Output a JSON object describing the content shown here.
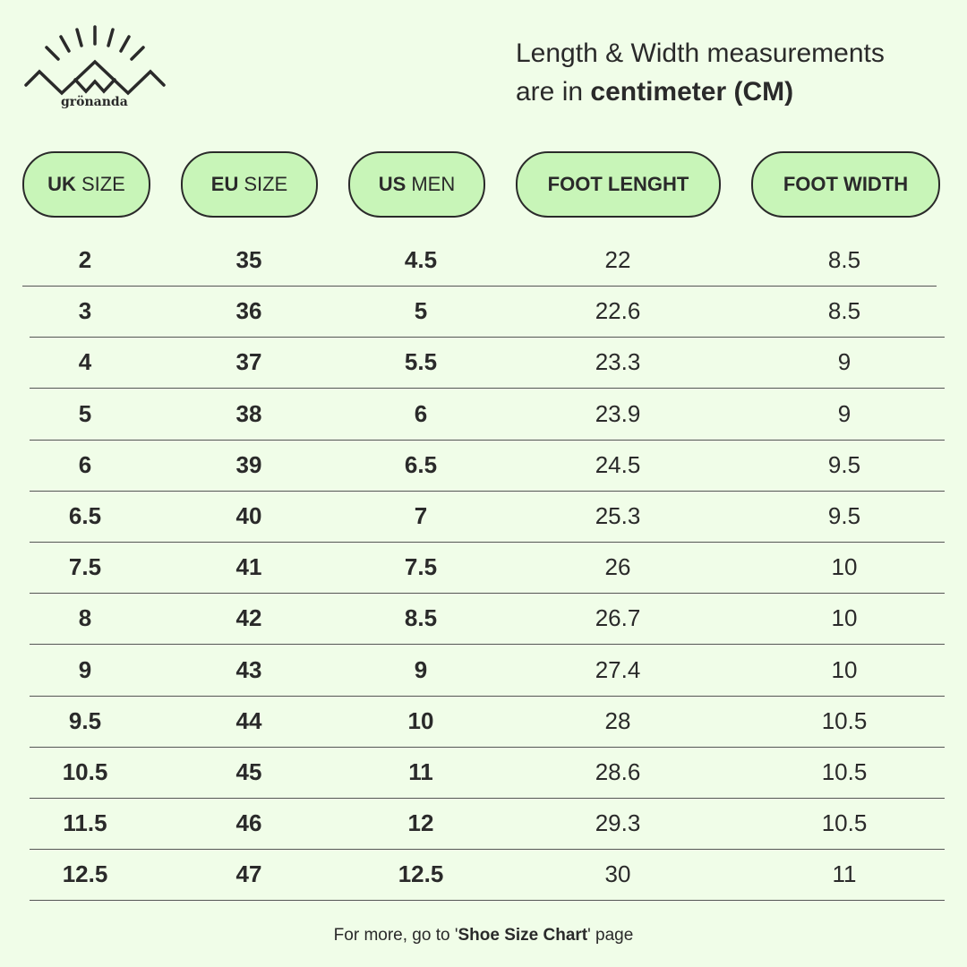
{
  "brand": {
    "name": "grönanda"
  },
  "note": {
    "line1": "Length & Width measurements",
    "line2_prefix": "are in ",
    "line2_bold": "centimeter (CM)"
  },
  "headers": [
    {
      "bold": "UK",
      "rest": "SIZE"
    },
    {
      "bold": "EU",
      "rest": "SIZE"
    },
    {
      "bold": "US",
      "rest": "MEN"
    },
    {
      "bold": "FOOT LENGHT",
      "rest": ""
    },
    {
      "bold": "FOOT WIDTH",
      "rest": ""
    }
  ],
  "rows": [
    [
      "2",
      "35",
      "4.5",
      "22",
      "8.5"
    ],
    [
      "3",
      "36",
      "5",
      "22.6",
      "8.5"
    ],
    [
      "4",
      "37",
      "5.5",
      "23.3",
      "9"
    ],
    [
      "5",
      "38",
      "6",
      "23.9",
      "9"
    ],
    [
      "6",
      "39",
      "6.5",
      "24.5",
      "9.5"
    ],
    [
      "6.5",
      "40",
      "7",
      "25.3",
      "9.5"
    ],
    [
      "7.5",
      "41",
      "7.5",
      "26",
      "10"
    ],
    [
      "8",
      "42",
      "8.5",
      "26.7",
      "10"
    ],
    [
      "9",
      "43",
      "9",
      "27.4",
      "10"
    ],
    [
      "9.5",
      "44",
      "10",
      "28",
      "10.5"
    ],
    [
      "10.5",
      "45",
      "11",
      "28.6",
      "10.5"
    ],
    [
      "11.5",
      "46",
      "12",
      "29.3",
      "10.5"
    ],
    [
      "12.5",
      "47",
      "12.5",
      "30",
      "11"
    ]
  ],
  "footer": {
    "prefix": "For more, go to '",
    "link": "Shoe Size Chart",
    "suffix": "' page"
  },
  "colors": {
    "background": "#f0fde8",
    "pill": "#c8f5b8",
    "ink": "#2a2a2a"
  }
}
